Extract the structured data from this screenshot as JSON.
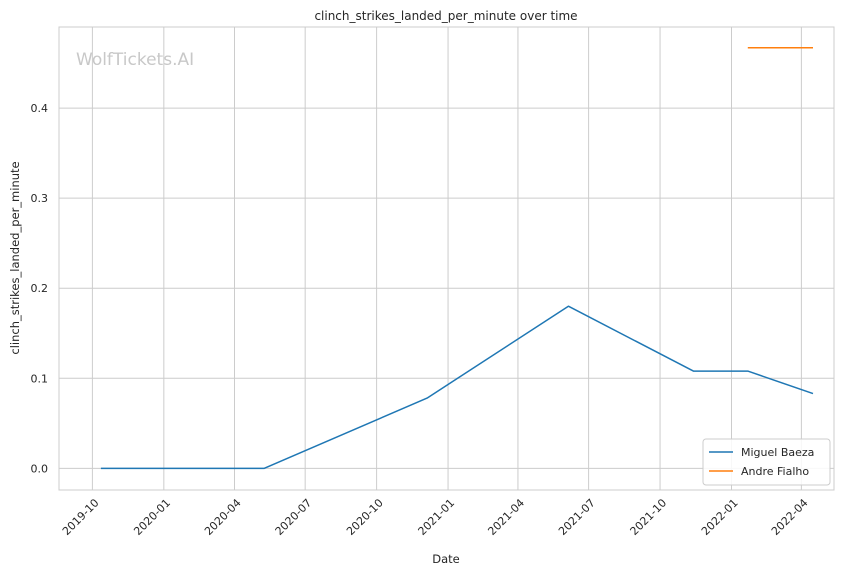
{
  "chart_data": {
    "type": "line",
    "title": "clinch_strikes_landed_per_minute over time",
    "xlabel": "Date",
    "ylabel": "clinch_strikes_landed_per_minute",
    "watermark": "WolfTickets.AI",
    "xlim": [
      "2019-08-19",
      "2022-05-13"
    ],
    "ylim": [
      -0.024,
      0.49
    ],
    "x_ticks": [
      "2019-10",
      "2020-01",
      "2020-04",
      "2020-07",
      "2020-10",
      "2021-01",
      "2021-04",
      "2021-07",
      "2021-10",
      "2022-01",
      "2022-04"
    ],
    "y_ticks": [
      "0.0",
      "0.1",
      "0.2",
      "0.3",
      "0.4"
    ],
    "grid": true,
    "legend_position": "bottom-right",
    "series": [
      {
        "name": "Miguel Baeza",
        "color": "#1f77b4",
        "points": [
          {
            "x": "2019-10-12",
            "y": 0.0
          },
          {
            "x": "2020-05-09",
            "y": 0.0
          },
          {
            "x": "2020-12-05",
            "y": 0.078
          },
          {
            "x": "2021-06-05",
            "y": 0.18
          },
          {
            "x": "2021-11-13",
            "y": 0.108
          },
          {
            "x": "2022-01-22",
            "y": 0.108
          },
          {
            "x": "2022-04-16",
            "y": 0.083
          }
        ]
      },
      {
        "name": "Andre Fialho",
        "color": "#ff7f0e",
        "points": [
          {
            "x": "2022-01-22",
            "y": 0.467
          },
          {
            "x": "2022-04-16",
            "y": 0.467
          }
        ]
      }
    ]
  }
}
